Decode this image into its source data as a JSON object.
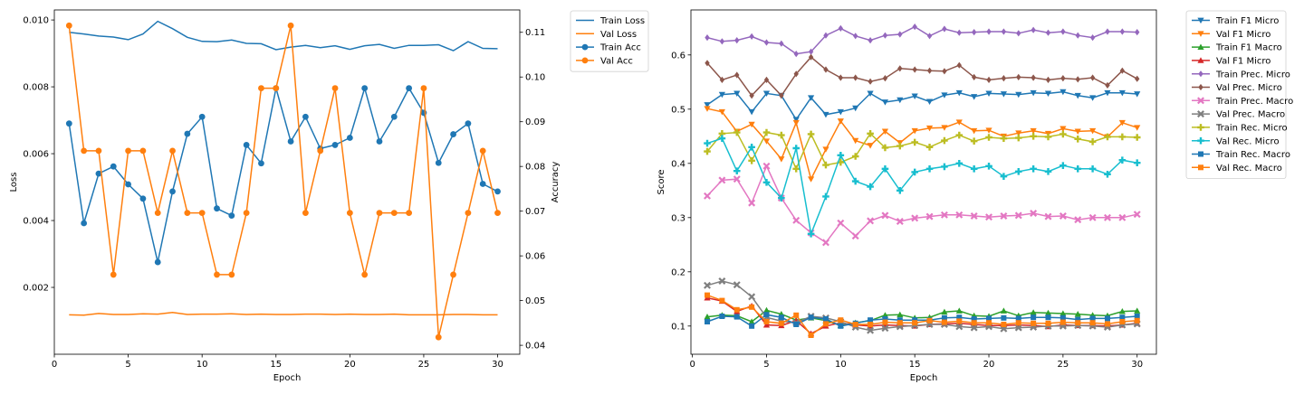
{
  "chart_data": [
    {
      "type": "line",
      "xlabel": "Epoch",
      "ylabel": "Loss",
      "y2label": "Accuracy",
      "x": [
        1,
        2,
        3,
        4,
        5,
        6,
        7,
        8,
        9,
        10,
        11,
        12,
        13,
        14,
        15,
        16,
        17,
        18,
        19,
        20,
        21,
        22,
        23,
        24,
        25,
        26,
        27,
        28,
        29,
        30
      ],
      "xlim": [
        0,
        31.5
      ],
      "ylim": [
        0,
        0.0103
      ],
      "y2lim": [
        0.038,
        0.115
      ],
      "xticks": [
        0,
        5,
        10,
        15,
        20,
        25,
        30
      ],
      "yticks": [
        0.002,
        0.004,
        0.006,
        0.008,
        0.01
      ],
      "y2ticks": [
        0.04,
        0.05,
        0.06,
        0.07,
        0.08,
        0.09,
        0.1,
        0.11
      ],
      "xtick_labels": [
        "0",
        "5",
        "10",
        "15",
        "20",
        "25",
        "30"
      ],
      "ytick_labels": [
        "0.002",
        "0.004",
        "0.006",
        "0.008",
        "0.010"
      ],
      "y2tick_labels": [
        "0.04",
        "0.05",
        "0.06",
        "0.07",
        "0.08",
        "0.09",
        "0.10",
        "0.11"
      ],
      "legend_position": "outside-top-right",
      "series": [
        {
          "name": "Train Loss",
          "axis": "left",
          "color": "#1f77b4",
          "marker": "none",
          "values": [
            0.00963,
            0.00958,
            0.00952,
            0.00949,
            0.00941,
            0.00958,
            0.00996,
            0.00974,
            0.00948,
            0.00936,
            0.00935,
            0.0094,
            0.0093,
            0.00929,
            0.00911,
            0.00919,
            0.00924,
            0.00917,
            0.00923,
            0.00912,
            0.00923,
            0.00927,
            0.00915,
            0.00924,
            0.00924,
            0.00926,
            0.00908,
            0.00935,
            0.00915,
            0.00914
          ]
        },
        {
          "name": "Val Loss",
          "axis": "left",
          "color": "#ff7f0e",
          "marker": "none",
          "values": [
            0.00118,
            0.00117,
            0.00122,
            0.00119,
            0.00119,
            0.00121,
            0.0012,
            0.00125,
            0.00119,
            0.0012,
            0.0012,
            0.00121,
            0.00119,
            0.0012,
            0.00119,
            0.00119,
            0.0012,
            0.0012,
            0.00119,
            0.0012,
            0.00119,
            0.00119,
            0.0012,
            0.00118,
            0.00118,
            0.00118,
            0.00119,
            0.00119,
            0.00118,
            0.00118
          ]
        },
        {
          "name": "Train Acc",
          "axis": "right",
          "color": "#1f77b4",
          "marker": "circle",
          "values": [
            0.0896,
            0.0673,
            0.0784,
            0.08,
            0.076,
            0.0728,
            0.0586,
            0.0744,
            0.0873,
            0.0911,
            0.0706,
            0.069,
            0.0848,
            0.0807,
            0.0975,
            0.0856,
            0.0911,
            0.084,
            0.0848,
            0.0864,
            0.0975,
            0.0856,
            0.0911,
            0.0975,
            0.092,
            0.0808,
            0.0872,
            0.0896,
            0.0761,
            0.0744
          ]
        },
        {
          "name": "Val Acc",
          "axis": "right",
          "color": "#ff7f0e",
          "marker": "circle",
          "values": [
            0.1115,
            0.0835,
            0.0835,
            0.0558,
            0.0835,
            0.0835,
            0.0696,
            0.0835,
            0.0696,
            0.0696,
            0.0558,
            0.0558,
            0.0696,
            0.0975,
            0.0975,
            0.1115,
            0.0696,
            0.0835,
            0.0975,
            0.0696,
            0.0558,
            0.0696,
            0.0696,
            0.0696,
            0.0975,
            0.0418,
            0.0558,
            0.0696,
            0.0835,
            0.0696
          ]
        }
      ]
    },
    {
      "type": "line",
      "xlabel": "Epoch",
      "ylabel": "Score",
      "x": [
        1,
        2,
        3,
        4,
        5,
        6,
        7,
        8,
        9,
        10,
        11,
        12,
        13,
        14,
        15,
        16,
        17,
        18,
        19,
        20,
        21,
        22,
        23,
        24,
        25,
        26,
        27,
        28,
        29,
        30
      ],
      "xlim": [
        -0.1,
        31.3
      ],
      "ylim": [
        0.048,
        0.683
      ],
      "xticks": [
        0,
        5,
        10,
        15,
        20,
        25,
        30
      ],
      "yticks": [
        0.1,
        0.2,
        0.3,
        0.4,
        0.5,
        0.6
      ],
      "xtick_labels": [
        "0",
        "5",
        "10",
        "15",
        "20",
        "25",
        "30"
      ],
      "ytick_labels": [
        "0.1",
        "0.2",
        "0.3",
        "0.4",
        "0.5",
        "0.6"
      ],
      "legend_position": "outside-top-right",
      "series": [
        {
          "name": "Train F1 Micro",
          "color": "#1f77b4",
          "marker": "tri-down",
          "values": [
            0.508,
            0.527,
            0.529,
            0.495,
            0.529,
            0.525,
            0.481,
            0.521,
            0.49,
            0.495,
            0.502,
            0.529,
            0.513,
            0.517,
            0.524,
            0.514,
            0.526,
            0.53,
            0.523,
            0.529,
            0.528,
            0.527,
            0.53,
            0.529,
            0.532,
            0.525,
            0.521,
            0.53,
            0.53,
            0.528
          ]
        },
        {
          "name": "Val F1 Micro",
          "color": "#ff7f0e",
          "marker": "tri-down",
          "values": [
            0.501,
            0.495,
            0.459,
            0.472,
            0.441,
            0.408,
            0.475,
            0.371,
            0.426,
            0.478,
            0.442,
            0.433,
            0.459,
            0.438,
            0.46,
            0.465,
            0.466,
            0.476,
            0.46,
            0.461,
            0.45,
            0.456,
            0.46,
            0.455,
            0.464,
            0.459,
            0.46,
            0.449,
            0.475,
            0.466
          ]
        },
        {
          "name": "Train F1 Macro",
          "color": "#2ca02c",
          "marker": "tri-up",
          "values": [
            0.117,
            0.12,
            0.119,
            0.108,
            0.129,
            0.122,
            0.111,
            0.115,
            0.11,
            0.101,
            0.106,
            0.11,
            0.12,
            0.121,
            0.115,
            0.116,
            0.126,
            0.128,
            0.119,
            0.118,
            0.128,
            0.119,
            0.125,
            0.124,
            0.123,
            0.122,
            0.12,
            0.119,
            0.127,
            0.128
          ]
        },
        {
          "name": "Val F1 Micro",
          "color": "#d62728",
          "marker": "tri-up",
          "values": [
            0.152,
            0.146,
            0.127,
            0.137,
            0.102,
            0.101,
            0.11,
            0.086,
            0.1,
            0.106,
            0.102,
            0.1,
            0.102,
            0.101,
            0.1,
            0.103,
            0.104,
            0.105,
            0.103,
            0.101,
            0.101,
            0.102,
            0.101,
            0.099,
            0.102,
            0.101,
            0.101,
            0.1,
            0.102,
            0.105
          ]
        },
        {
          "name": "Train Prec. Micro",
          "color": "#9467bd",
          "marker": "diamond",
          "values": [
            0.632,
            0.625,
            0.627,
            0.634,
            0.623,
            0.621,
            0.602,
            0.606,
            0.636,
            0.649,
            0.635,
            0.627,
            0.636,
            0.638,
            0.652,
            0.635,
            0.648,
            0.641,
            0.642,
            0.643,
            0.643,
            0.64,
            0.646,
            0.641,
            0.643,
            0.636,
            0.632,
            0.643,
            0.643,
            0.642
          ]
        },
        {
          "name": "Val Prec. Micro",
          "color": "#8c564b",
          "marker": "diamond",
          "values": [
            0.585,
            0.554,
            0.563,
            0.525,
            0.554,
            0.525,
            0.565,
            0.596,
            0.573,
            0.558,
            0.558,
            0.551,
            0.557,
            0.575,
            0.573,
            0.571,
            0.57,
            0.581,
            0.559,
            0.554,
            0.557,
            0.559,
            0.558,
            0.554,
            0.557,
            0.555,
            0.558,
            0.544,
            0.571,
            0.556
          ]
        },
        {
          "name": "Train Prec. Macro",
          "color": "#e377c2",
          "marker": "x",
          "values": [
            0.34,
            0.369,
            0.371,
            0.327,
            0.395,
            0.336,
            0.295,
            0.272,
            0.254,
            0.29,
            0.266,
            0.294,
            0.304,
            0.293,
            0.299,
            0.302,
            0.305,
            0.305,
            0.303,
            0.301,
            0.303,
            0.304,
            0.308,
            0.302,
            0.303,
            0.296,
            0.3,
            0.3,
            0.3,
            0.306
          ]
        },
        {
          "name": "Val Prec. Macro",
          "color": "#7f7f7f",
          "marker": "x",
          "values": [
            0.175,
            0.183,
            0.176,
            0.154,
            0.116,
            0.109,
            0.106,
            0.118,
            0.115,
            0.108,
            0.098,
            0.092,
            0.096,
            0.099,
            0.101,
            0.103,
            0.103,
            0.099,
            0.097,
            0.099,
            0.095,
            0.097,
            0.098,
            0.1,
            0.1,
            0.101,
            0.1,
            0.098,
            0.102,
            0.104
          ]
        },
        {
          "name": "Train Rec. Micro",
          "color": "#bcbd22",
          "marker": "plus",
          "values": [
            0.422,
            0.455,
            0.457,
            0.405,
            0.457,
            0.452,
            0.39,
            0.454,
            0.397,
            0.402,
            0.413,
            0.455,
            0.429,
            0.432,
            0.439,
            0.43,
            0.442,
            0.452,
            0.441,
            0.448,
            0.446,
            0.447,
            0.45,
            0.449,
            0.454,
            0.445,
            0.44,
            0.449,
            0.449,
            0.448
          ]
        },
        {
          "name": "Val Rec. Micro",
          "color": "#17becf",
          "marker": "plus",
          "values": [
            0.437,
            0.446,
            0.386,
            0.43,
            0.365,
            0.336,
            0.428,
            0.27,
            0.339,
            0.415,
            0.367,
            0.357,
            0.39,
            0.35,
            0.384,
            0.39,
            0.394,
            0.4,
            0.39,
            0.395,
            0.376,
            0.385,
            0.39,
            0.385,
            0.396,
            0.39,
            0.39,
            0.38,
            0.406,
            0.401
          ]
        },
        {
          "name": "Train Rec. Macro",
          "color": "#1f77b4",
          "marker": "square",
          "values": [
            0.108,
            0.118,
            0.117,
            0.1,
            0.121,
            0.116,
            0.103,
            0.116,
            0.113,
            0.1,
            0.105,
            0.111,
            0.113,
            0.111,
            0.111,
            0.111,
            0.115,
            0.116,
            0.113,
            0.114,
            0.115,
            0.114,
            0.116,
            0.116,
            0.115,
            0.112,
            0.114,
            0.114,
            0.116,
            0.118
          ]
        },
        {
          "name": "Val Rec. Macro",
          "color": "#ff7f0e",
          "marker": "square",
          "values": [
            0.157,
            0.147,
            0.13,
            0.135,
            0.108,
            0.105,
            0.12,
            0.083,
            0.104,
            0.111,
            0.103,
            0.103,
            0.107,
            0.106,
            0.106,
            0.11,
            0.107,
            0.109,
            0.106,
            0.106,
            0.103,
            0.106,
            0.105,
            0.105,
            0.107,
            0.106,
            0.106,
            0.104,
            0.108,
            0.11
          ]
        }
      ]
    }
  ]
}
